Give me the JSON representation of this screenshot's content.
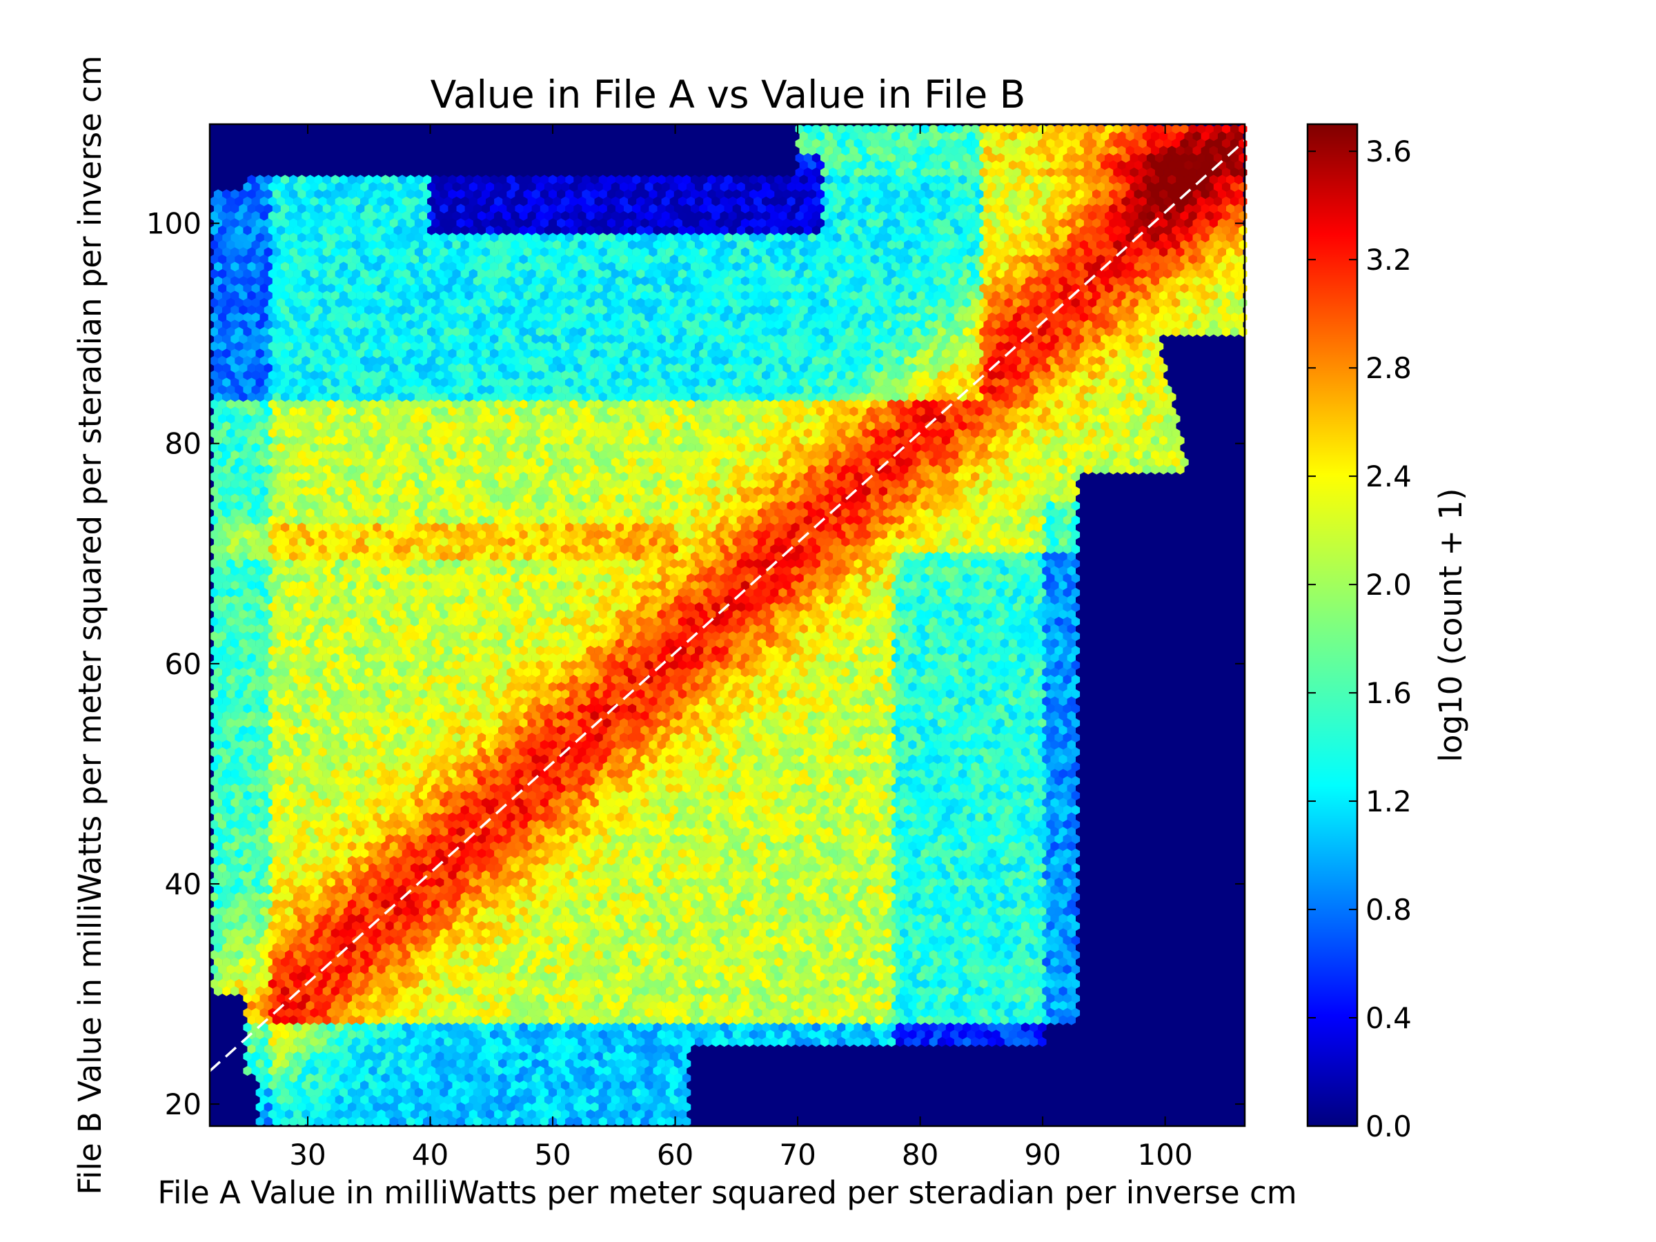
{
  "chart_data": {
    "type": "heatmap",
    "subtype": "hexbin",
    "title": "Value in File A vs Value in File B",
    "xlabel": "File A Value in milliWatts per meter squared per steradian per inverse cm",
    "ylabel": "File B Value in milliWatts per meter squared per steradian per inverse cm",
    "xlim": [
      22,
      106.5
    ],
    "ylim": [
      18,
      109
    ],
    "xticks": [
      30,
      40,
      50,
      60,
      70,
      80,
      90,
      100
    ],
    "yticks": [
      20,
      40,
      60,
      80,
      100
    ],
    "colorbar": {
      "label": "log10 (count + 1)",
      "range": [
        0.0,
        3.7
      ],
      "ticks": [
        "0.0",
        "0.4",
        "0.8",
        "1.2",
        "1.6",
        "2.0",
        "2.4",
        "2.8",
        "3.2",
        "3.6"
      ],
      "colormap": "jet"
    },
    "reference_line": {
      "style": "dashed",
      "color": "#ffffff",
      "from": [
        22,
        23
      ],
      "to": [
        106.5,
        107.5
      ]
    },
    "background_color": "#00007f",
    "density_summary": {
      "diagonal_ridge_log10": 3.0,
      "peak_region": {
        "x": [
          97,
          104
        ],
        "y": [
          101,
          108
        ],
        "log10": 3.6
      },
      "horizontal_band_y": 71,
      "low_density_block": {
        "x": [
          40,
          72
        ],
        "y": [
          100,
          105
        ],
        "log10": 0.5
      }
    }
  }
}
